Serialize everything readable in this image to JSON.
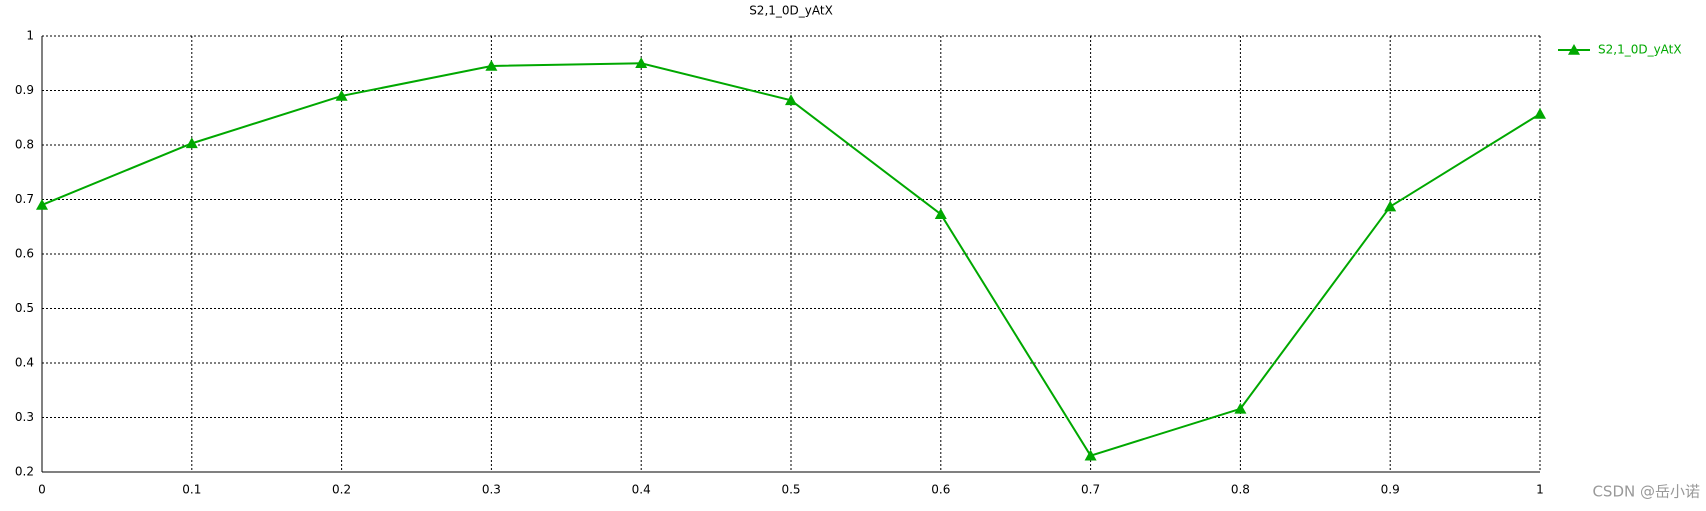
{
  "chart_data": {
    "type": "line",
    "title": "S2,1_0D_yAtX",
    "x": [
      0,
      0.1,
      0.2,
      0.3,
      0.4,
      0.5,
      0.6,
      0.7,
      0.8,
      0.9,
      1
    ],
    "series": [
      {
        "name": "S2,1_0D_yAtX",
        "color": "#00a800",
        "values": [
          0.69,
          0.803,
          0.89,
          0.945,
          0.95,
          0.882,
          0.673,
          0.23,
          0.316,
          0.687,
          0.857
        ]
      }
    ],
    "xlim": [
      0,
      1
    ],
    "xticks": [
      0,
      0.1,
      0.2,
      0.3,
      0.4,
      0.5,
      0.6,
      0.7,
      0.8,
      0.9,
      1
    ],
    "ylim": [
      0.2,
      1
    ],
    "yticks": [
      0.2,
      0.3,
      0.4,
      0.5,
      0.6,
      0.7,
      0.8,
      0.9,
      1
    ],
    "grid": true,
    "legend": "right",
    "marker": "triangle"
  },
  "watermark": "CSDN @岳小诺"
}
